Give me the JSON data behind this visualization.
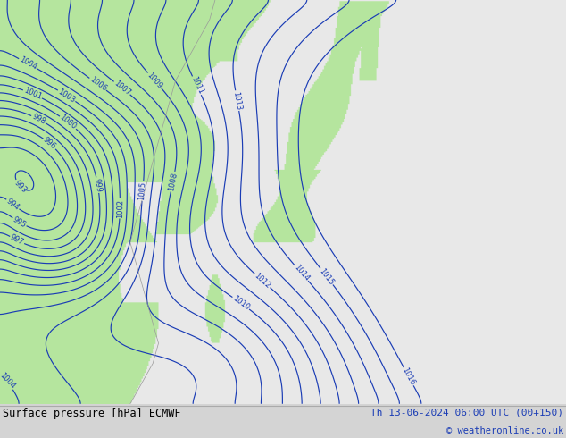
{
  "title_left": "Surface pressure [hPa] ECMWF",
  "title_right": "Th 13-06-2024 06:00 UTC (00+150)",
  "copyright": "© weatheronline.co.uk",
  "bg_color": "#d4d4d4",
  "land_color_rgb": [
    0.71,
    0.9,
    0.62
  ],
  "sea_color_rgb": [
    0.91,
    0.91,
    0.91
  ],
  "contour_color": "#1a3cb5",
  "coast_color": "#999999",
  "text_color": "#000000",
  "bottom_bar_color": "#d4d4d4",
  "font_size_labels": 6.5,
  "font_size_bottom": 8
}
